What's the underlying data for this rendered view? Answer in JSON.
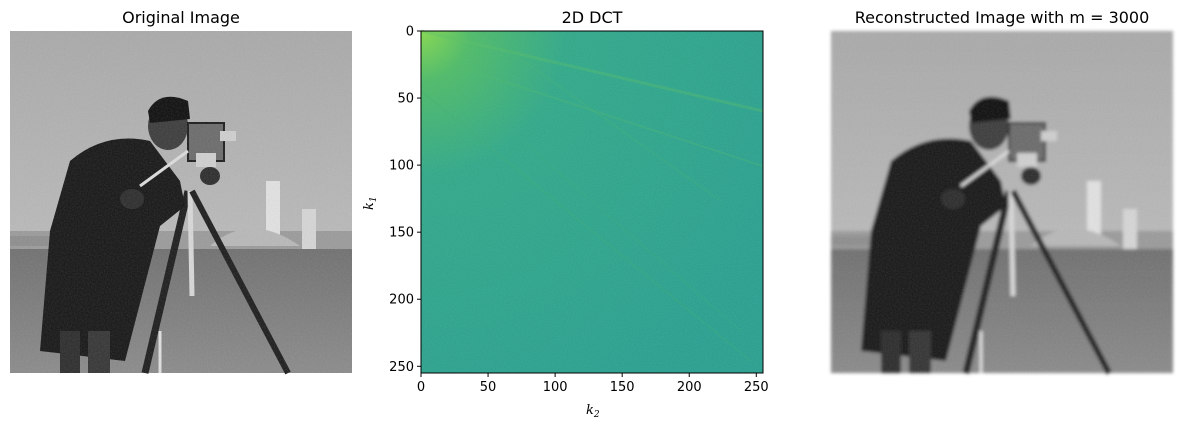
{
  "figure": {
    "panels": [
      {
        "title": "Original Image",
        "kind": "image",
        "content": "grayscale photograph of a cameraman with tripod camera on a grass field"
      },
      {
        "title": "2D DCT",
        "kind": "heatmap"
      },
      {
        "title": "Reconstructed Image with m = 3000",
        "kind": "image",
        "content": "blurred, noisy reconstruction of the same cameraman photograph"
      }
    ]
  },
  "chart_data": [
    {
      "type": "heatmap",
      "title": "2D DCT",
      "xlabel": "k_2",
      "ylabel": "k_1",
      "xlim": [
        0,
        255
      ],
      "ylim": [
        255,
        0
      ],
      "x_ticks": [
        0,
        50,
        100,
        150,
        200,
        250
      ],
      "y_ticks": [
        0,
        50,
        100,
        150,
        200,
        250
      ],
      "x_tick_labels": [
        "0",
        "50",
        "100",
        "150",
        "200",
        "250"
      ],
      "y_tick_labels": [
        "0",
        "50",
        "100",
        "150",
        "200",
        "250"
      ],
      "colormap": "viridis",
      "dominant_color": "#2a9a8a",
      "hot_color": "#6fcf4f",
      "grid": false,
      "legend": "none"
    }
  ]
}
